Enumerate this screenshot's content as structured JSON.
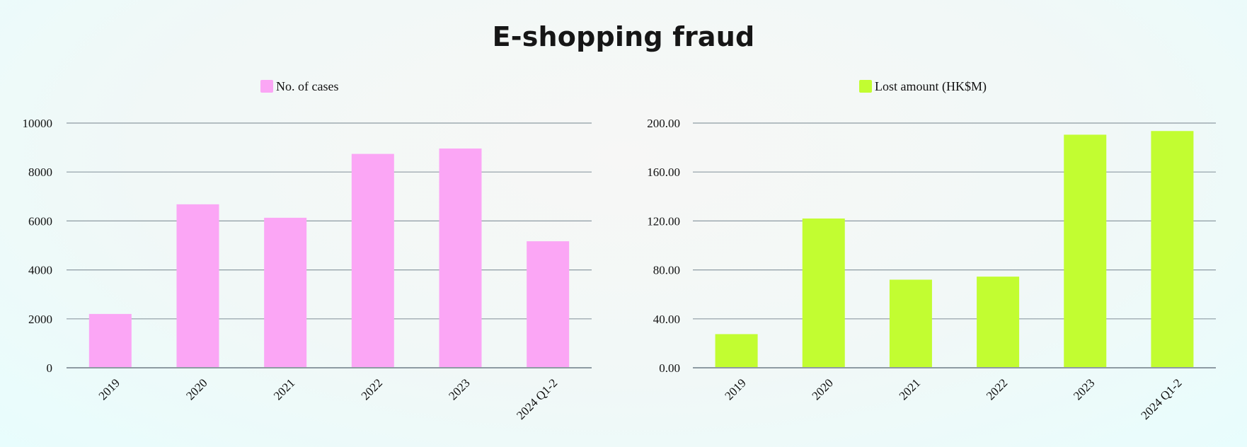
{
  "title": "E-shopping fraud",
  "chart_data": [
    {
      "type": "bar",
      "categories": [
        "2019",
        "2020",
        "2021",
        "2022",
        "2023",
        "2024 Q1-2"
      ],
      "series": [
        {
          "name": "No. of cases",
          "values": [
            2200,
            6680,
            6130,
            8740,
            8960,
            5170
          ]
        }
      ],
      "ylim": [
        0,
        10000
      ],
      "yticks": [
        "0",
        "2000",
        "4000",
        "6000",
        "8000",
        "10000"
      ],
      "yticks_values": [
        0,
        2000,
        4000,
        6000,
        8000,
        10000
      ],
      "legend_position": "top",
      "grid": true,
      "color": "#fba6f5"
    },
    {
      "type": "bar",
      "categories": [
        "2019",
        "2020",
        "2021",
        "2022",
        "2023",
        "2024 Q1-2"
      ],
      "series": [
        {
          "name": "Lost amount (HK$M)",
          "values": [
            27.5,
            122.0,
            72.0,
            74.5,
            190.5,
            193.5
          ]
        }
      ],
      "ylim": [
        0,
        200
      ],
      "yticks": [
        "0.00",
        "40.00",
        "80.00",
        "120.00",
        "160.00",
        "200.00"
      ],
      "yticks_values": [
        0,
        40,
        80,
        120,
        160,
        200
      ],
      "legend_position": "top",
      "grid": true,
      "color": "#c2fd31"
    }
  ]
}
